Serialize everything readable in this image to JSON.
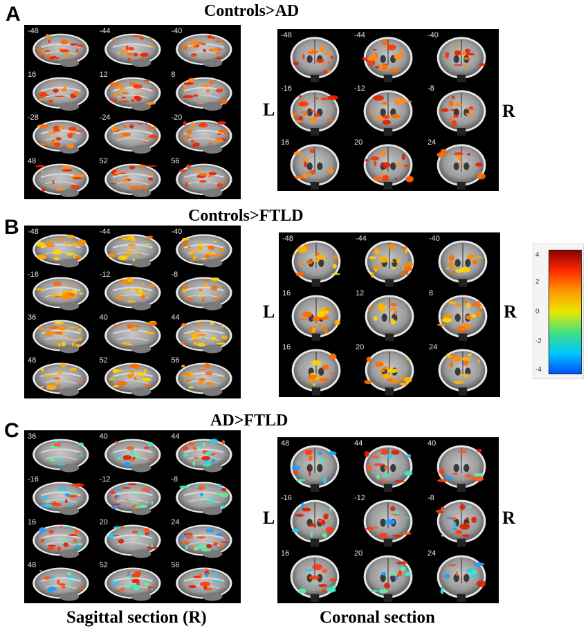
{
  "panels": [
    {
      "letter": "A",
      "title": "Controls>AD",
      "sagittal_slices": [
        "-48",
        "-44",
        "-40",
        "16",
        "12",
        "8",
        "-28",
        "-24",
        "-20",
        "48",
        "52",
        "56"
      ],
      "coronal_slices": [
        "-48",
        "-44",
        "-40",
        "-16",
        "-12",
        "-8",
        "16",
        "20",
        "24"
      ],
      "activation": "warm"
    },
    {
      "letter": "B",
      "title": "Controls>FTLD",
      "sagittal_slices": [
        "-48",
        "-44",
        "-40",
        "-16",
        "-12",
        "-8",
        "36",
        "40",
        "44",
        "48",
        "52",
        "56"
      ],
      "coronal_slices": [
        "-48",
        "-44",
        "-40",
        "16",
        "12",
        "8",
        "16",
        "20",
        "24"
      ],
      "activation": "yellow"
    },
    {
      "letter": "C",
      "title": "AD>FTLD",
      "sagittal_slices": [
        "36",
        "40",
        "44",
        "-16",
        "-12",
        "-8",
        "16",
        "20",
        "24",
        "48",
        "52",
        "56"
      ],
      "coronal_slices": [
        "48",
        "44",
        "40",
        "-16",
        "-12",
        "-8",
        "16",
        "20",
        "24"
      ],
      "activation": "mixed"
    }
  ],
  "orientation": {
    "left": "L",
    "right": "R"
  },
  "colorbar": {
    "ticks": [
      "4",
      "2",
      "0",
      "-2",
      "-4"
    ],
    "colors": [
      "#8b0000",
      "#ff2a00",
      "#ff9900",
      "#e8e800",
      "#40e080",
      "#00c8ff",
      "#0050ff"
    ]
  },
  "captions": {
    "sagittal": "Sagittal section (R)",
    "coronal": "Coronal section"
  }
}
